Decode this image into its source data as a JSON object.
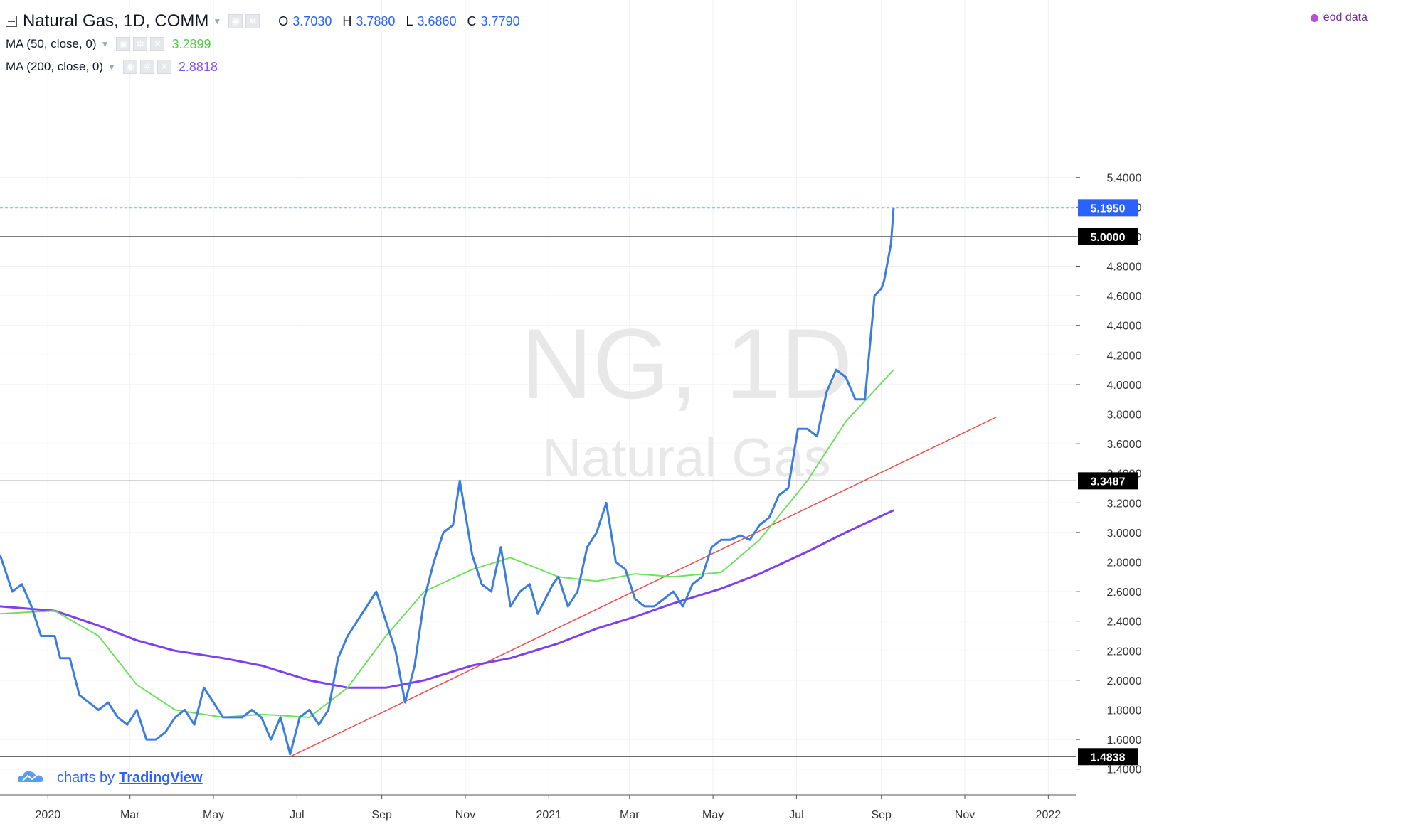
{
  "header": {
    "symbol_title": "Natural Gas, 1D, COMM",
    "ohlc": {
      "o_label": "O",
      "o": "3.7030",
      "h_label": "H",
      "h": "3.7880",
      "l_label": "L",
      "l": "3.6860",
      "c_label": "C",
      "c": "3.7790"
    },
    "ma50": {
      "label": "MA (50, close, 0)",
      "value": "3.2899"
    },
    "ma200": {
      "label": "MA (200, close, 0)",
      "value": "2.8818"
    },
    "eod": "eod data"
  },
  "watermark": {
    "symbol": "NG, 1D",
    "name": "Natural Gas"
  },
  "branding": {
    "prefix": "charts by",
    "name": "TradingView"
  },
  "colors": {
    "price": "#3b7ddd",
    "ma50": "#6fe15e",
    "ma200": "#7e3ff2",
    "trendline": "#f04a4a",
    "last_price_tag": "#2962ff",
    "level_tag": "#000000"
  },
  "chart_data": {
    "type": "line",
    "title": "Natural Gas, 1D, COMM",
    "ylim": [
      1.3,
      5.45
    ],
    "x_ticks": [
      "2020",
      "Mar",
      "May",
      "Jul",
      "Sep",
      "Nov",
      "2021",
      "Mar",
      "May",
      "Jul",
      "Sep",
      "Nov",
      "2022"
    ],
    "y_ticks": [
      "1.4000",
      "1.6000",
      "1.8000",
      "2.0000",
      "2.2000",
      "2.4000",
      "2.6000",
      "2.8000",
      "3.0000",
      "3.2000",
      "3.4000",
      "3.6000",
      "3.8000",
      "4.0000",
      "4.2000",
      "4.4000",
      "4.6000",
      "4.8000",
      "5.0000",
      "5.2000",
      "5.4000"
    ],
    "price_tags": [
      {
        "label": "5.1950",
        "value": 5.195,
        "style": "last"
      },
      {
        "label": "5.0000",
        "value": 5.0,
        "style": "level"
      },
      {
        "label": "3.3487",
        "value": 3.3487,
        "style": "level"
      },
      {
        "label": "1.4838",
        "value": 1.4838,
        "style": "level"
      }
    ],
    "horizontal_levels": [
      5.0,
      3.3487,
      1.4838
    ],
    "series": [
      {
        "name": "Natural Gas",
        "x": [
          "2019-11-27",
          "2019-12-06",
          "2019-12-13",
          "2019-12-20",
          "2019-12-27",
          "2020-01-06",
          "2020-01-10",
          "2020-01-17",
          "2020-01-24",
          "2020-01-31",
          "2020-02-07",
          "2020-02-14",
          "2020-02-21",
          "2020-02-28",
          "2020-03-06",
          "2020-03-13",
          "2020-03-20",
          "2020-03-27",
          "2020-04-03",
          "2020-04-10",
          "2020-04-17",
          "2020-04-24",
          "2020-05-01",
          "2020-05-08",
          "2020-05-15",
          "2020-05-22",
          "2020-05-29",
          "2020-06-05",
          "2020-06-12",
          "2020-06-19",
          "2020-06-26",
          "2020-07-03",
          "2020-07-10",
          "2020-07-17",
          "2020-07-24",
          "2020-07-31",
          "2020-08-07",
          "2020-08-14",
          "2020-08-21",
          "2020-08-28",
          "2020-09-04",
          "2020-09-11",
          "2020-09-18",
          "2020-09-25",
          "2020-10-02",
          "2020-10-09",
          "2020-10-16",
          "2020-10-23",
          "2020-10-28",
          "2020-11-06",
          "2020-11-13",
          "2020-11-20",
          "2020-11-27",
          "2020-12-04",
          "2020-12-11",
          "2020-12-18",
          "2020-12-24",
          "2021-01-04",
          "2021-01-08",
          "2021-01-15",
          "2021-01-22",
          "2021-01-29",
          "2021-02-05",
          "2021-02-12",
          "2021-02-19",
          "2021-02-26",
          "2021-03-05",
          "2021-03-12",
          "2021-03-19",
          "2021-03-26",
          "2021-04-02",
          "2021-04-09",
          "2021-04-16",
          "2021-04-23",
          "2021-04-30",
          "2021-05-07",
          "2021-05-14",
          "2021-05-21",
          "2021-05-28",
          "2021-06-04",
          "2021-06-11",
          "2021-06-18",
          "2021-06-25",
          "2021-07-02",
          "2021-07-09",
          "2021-07-16",
          "2021-07-23",
          "2021-07-30",
          "2021-08-06",
          "2021-08-13",
          "2021-08-20",
          "2021-08-27",
          "2021-09-01",
          "2021-09-03",
          "2021-09-08",
          "2021-09-10"
        ],
        "values": [
          2.85,
          2.6,
          2.65,
          2.5,
          2.3,
          2.3,
          2.15,
          2.15,
          1.9,
          1.85,
          1.8,
          1.85,
          1.75,
          1.7,
          1.8,
          1.6,
          1.6,
          1.65,
          1.75,
          1.8,
          1.7,
          1.95,
          1.85,
          1.75,
          1.75,
          1.75,
          1.8,
          1.75,
          1.6,
          1.75,
          1.5,
          1.75,
          1.8,
          1.7,
          1.8,
          2.15,
          2.3,
          2.4,
          2.5,
          2.6,
          2.4,
          2.2,
          1.85,
          2.1,
          2.55,
          2.8,
          3.0,
          3.05,
          3.35,
          2.85,
          2.65,
          2.6,
          2.9,
          2.5,
          2.6,
          2.65,
          2.45,
          2.65,
          2.7,
          2.5,
          2.6,
          2.9,
          3.0,
          3.2,
          2.8,
          2.75,
          2.55,
          2.5,
          2.5,
          2.55,
          2.6,
          2.5,
          2.65,
          2.7,
          2.9,
          2.95,
          2.95,
          2.98,
          2.95,
          3.05,
          3.1,
          3.25,
          3.3,
          3.7,
          3.7,
          3.65,
          3.95,
          4.1,
          4.05,
          3.9,
          3.9,
          4.6,
          4.65,
          4.7,
          4.95,
          5.195
        ]
      },
      {
        "name": "MA (50, close, 0)",
        "x": [
          "2019-11-27",
          "2020-01-06",
          "2020-02-07",
          "2020-03-06",
          "2020-04-03",
          "2020-05-08",
          "2020-06-05",
          "2020-07-10",
          "2020-08-07",
          "2020-09-04",
          "2020-10-02",
          "2020-11-06",
          "2020-12-04",
          "2021-01-08",
          "2021-02-05",
          "2021-03-05",
          "2021-04-02",
          "2021-05-07",
          "2021-06-04",
          "2021-07-09",
          "2021-08-06",
          "2021-09-10"
        ],
        "values": [
          2.45,
          2.47,
          2.3,
          1.97,
          1.8,
          1.75,
          1.77,
          1.75,
          1.95,
          2.3,
          2.6,
          2.75,
          2.83,
          2.7,
          2.67,
          2.72,
          2.7,
          2.73,
          2.95,
          3.35,
          3.75,
          4.1
        ]
      },
      {
        "name": "MA (200, close, 0)",
        "x": [
          "2019-11-27",
          "2020-01-06",
          "2020-02-07",
          "2020-03-06",
          "2020-04-03",
          "2020-05-08",
          "2020-06-05",
          "2020-07-10",
          "2020-08-07",
          "2020-09-04",
          "2020-10-02",
          "2020-11-06",
          "2020-12-04",
          "2021-01-08",
          "2021-02-05",
          "2021-03-05",
          "2021-04-02",
          "2021-05-07",
          "2021-06-04",
          "2021-07-09",
          "2021-08-06",
          "2021-09-10"
        ],
        "values": [
          2.5,
          2.47,
          2.37,
          2.27,
          2.2,
          2.15,
          2.1,
          2.0,
          1.95,
          1.95,
          2.0,
          2.1,
          2.15,
          2.25,
          2.35,
          2.43,
          2.52,
          2.62,
          2.72,
          2.87,
          3.0,
          3.15
        ]
      },
      {
        "name": "Trendline",
        "x": [
          "2020-06-26",
          "2021-11-24"
        ],
        "values": [
          1.4838,
          3.78
        ]
      }
    ],
    "grid": true,
    "legend": "top-left"
  }
}
